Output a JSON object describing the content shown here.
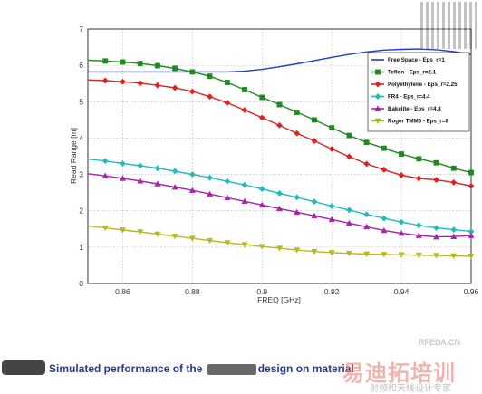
{
  "chart_data": {
    "type": "line",
    "title": "",
    "xlabel": "FREQ [GHz]",
    "ylabel": "Read Range [m]",
    "xlim": [
      0.85,
      0.96
    ],
    "ylim": [
      0,
      7
    ],
    "xticks": [
      "0.86",
      "0.88",
      "0.9",
      "0.92",
      "0.94",
      "0.96"
    ],
    "yticks": [
      "0",
      "1",
      "2",
      "3",
      "4",
      "5",
      "6",
      "7"
    ],
    "grid": true,
    "legend_position": "top-right",
    "x": [
      0.85,
      0.855,
      0.86,
      0.865,
      0.87,
      0.875,
      0.88,
      0.885,
      0.89,
      0.895,
      0.9,
      0.905,
      0.91,
      0.915,
      0.92,
      0.925,
      0.93,
      0.935,
      0.94,
      0.945,
      0.95,
      0.955,
      0.96
    ],
    "series": [
      {
        "name": "Free Space - Eps_r=1",
        "color": "#1f3fbf",
        "marker": "none",
        "values": [
          5.82,
          5.82,
          5.82,
          5.82,
          5.82,
          5.82,
          5.82,
          5.82,
          5.82,
          5.84,
          5.89,
          5.96,
          6.04,
          6.13,
          6.22,
          6.3,
          6.37,
          6.42,
          6.44,
          6.45,
          6.43,
          6.38,
          6.3
        ]
      },
      {
        "name": "Teflon - Eps_r=2.1",
        "color": "#1f8a1f",
        "marker": "square",
        "values": [
          6.14,
          6.12,
          6.09,
          6.05,
          5.99,
          5.92,
          5.82,
          5.7,
          5.53,
          5.33,
          5.12,
          4.92,
          4.71,
          4.5,
          4.28,
          4.07,
          3.88,
          3.72,
          3.56,
          3.43,
          3.32,
          3.17,
          3.05
        ]
      },
      {
        "name": "Polyethylene - Eps_r=2.25",
        "color": "#dd2222",
        "marker": "diamond",
        "values": [
          5.6,
          5.58,
          5.55,
          5.51,
          5.45,
          5.38,
          5.28,
          5.14,
          4.97,
          4.77,
          4.56,
          4.35,
          4.13,
          3.92,
          3.7,
          3.49,
          3.29,
          3.13,
          2.98,
          2.89,
          2.85,
          2.78,
          2.68
        ]
      },
      {
        "name": "FR4 - Eps_r=4.4",
        "color": "#22bbbb",
        "marker": "diamond",
        "values": [
          3.42,
          3.37,
          3.3,
          3.24,
          3.17,
          3.09,
          3.0,
          2.91,
          2.81,
          2.71,
          2.6,
          2.48,
          2.37,
          2.25,
          2.13,
          2.02,
          1.9,
          1.79,
          1.69,
          1.6,
          1.53,
          1.48,
          1.43
        ]
      },
      {
        "name": "Bakelite - Eps_r=4.8",
        "color": "#aa22aa",
        "marker": "triangle",
        "values": [
          3.02,
          2.96,
          2.89,
          2.82,
          2.74,
          2.65,
          2.56,
          2.46,
          2.36,
          2.26,
          2.16,
          2.06,
          1.96,
          1.86,
          1.76,
          1.66,
          1.56,
          1.46,
          1.38,
          1.32,
          1.28,
          1.29,
          1.32
        ]
      },
      {
        "name": "Roger TMM6 - Eps_r=6",
        "color": "#b8b822",
        "marker": "triangle-down",
        "values": [
          1.58,
          1.53,
          1.47,
          1.42,
          1.36,
          1.3,
          1.24,
          1.18,
          1.12,
          1.07,
          1.02,
          0.97,
          0.92,
          0.88,
          0.85,
          0.83,
          0.81,
          0.8,
          0.79,
          0.78,
          0.77,
          0.76,
          0.75
        ]
      }
    ]
  },
  "caption": {
    "prefix": "Simulated performance of the",
    "suffix": "design on material"
  },
  "watermarks": {
    "site": "RFEDA.CN",
    "logo": "易迪拓培训",
    "slogan": "射频和天线设计专家"
  }
}
